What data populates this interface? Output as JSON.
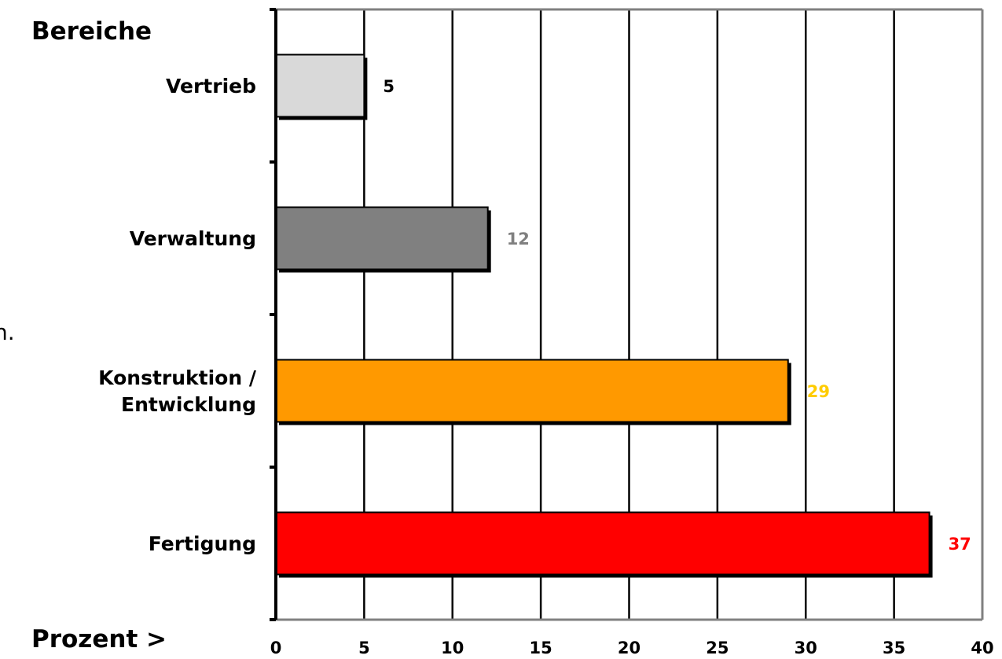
{
  "chart_data": {
    "type": "bar",
    "orientation": "horizontal",
    "title": "",
    "ylabel": "Bereiche",
    "xlabel": "Prozent >",
    "categories": [
      [
        "Vertrieb"
      ],
      [
        "Verwaltung"
      ],
      [
        "Konstruktion /",
        "Entwicklung"
      ],
      [
        "Fertigung"
      ]
    ],
    "values": [
      5,
      12,
      29,
      37
    ],
    "value_labels": [
      "5",
      "12",
      "29",
      "37"
    ],
    "bar_colors": [
      "#d9d9d9",
      "#808080",
      "#ff9900",
      "#ff0000"
    ],
    "value_label_colors": [
      "#000000",
      "#808080",
      "#ffcc00",
      "#ff0000"
    ],
    "xlim": [
      0,
      40
    ],
    "xticks": [
      0,
      5,
      10,
      15,
      20,
      25,
      30,
      35,
      40
    ],
    "xtick_labels": [
      "0",
      "5",
      "10",
      "15",
      "20",
      "25",
      "30",
      "35",
      "40"
    ],
    "grid": "vertical",
    "legend": "none"
  },
  "stray_text": "n."
}
